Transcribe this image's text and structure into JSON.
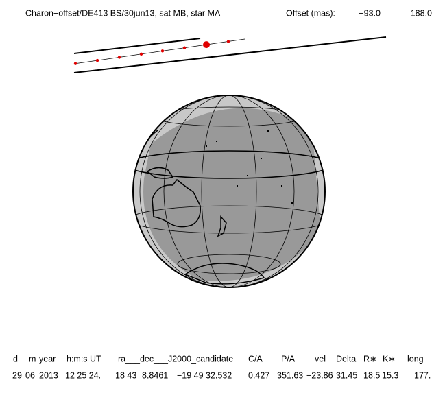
{
  "header": {
    "title": "Charon−offset/DE413 BS/30jun13, sat MB, star MA",
    "offset_label": "Offset (mas):",
    "offset_x": "−93.0",
    "offset_y": "188.0"
  },
  "table": {
    "columns": [
      "d",
      "m",
      "year",
      "h:m:s UT",
      "ra___dec___J2000_candidate",
      "C/A",
      "P/A",
      "vel",
      "Delta",
      "R∗",
      "K∗",
      "long"
    ],
    "rows": [
      [
        "29",
        "06",
        "2013",
        "12 25 24.",
        "18 43",
        "8.8461",
        "−19 49",
        "32.532",
        "0.427",
        "351.63",
        "−23.86",
        "31.45",
        "18.5",
        "15.3",
        "177."
      ]
    ]
  }
}
